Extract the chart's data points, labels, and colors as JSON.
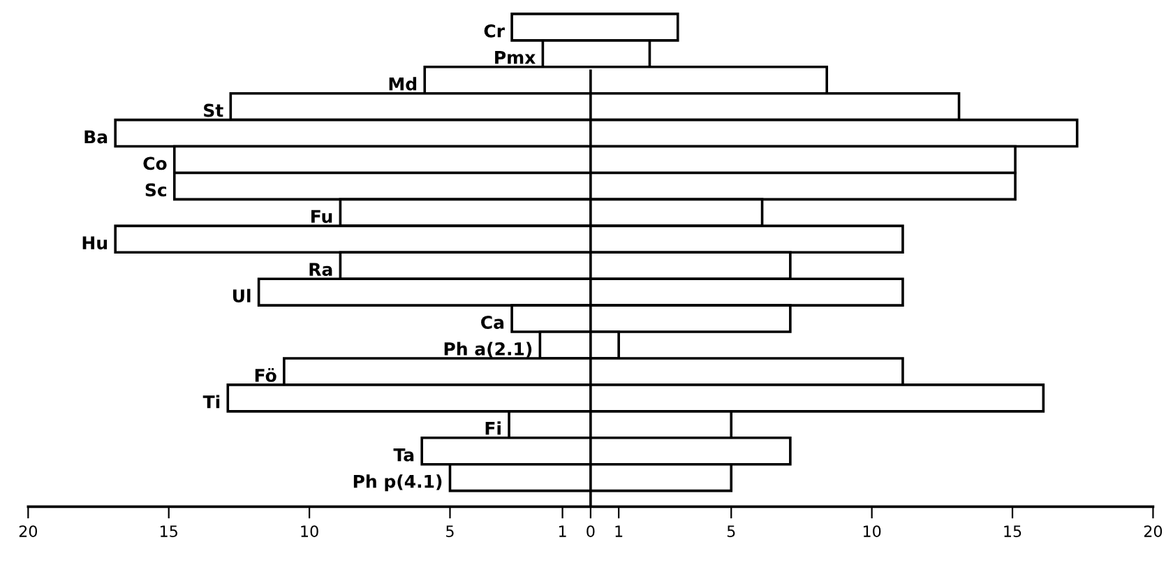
{
  "chart_data": {
    "type": "bar",
    "orientation": "horizontal",
    "categories": [
      "Cr",
      "Pmx",
      "Md",
      "St",
      "Ba",
      "Co",
      "Sc",
      "Fu",
      "Hu",
      "Ra",
      "Ul",
      "Ca",
      "Ph a(2.1)",
      "Fö",
      "Ti",
      "Fi",
      "Ta",
      "Ph p(4.1)"
    ],
    "base": [
      -2.8,
      -1.7,
      -5.9,
      -12.8,
      -16.9,
      -14.8,
      -14.8,
      -8.9,
      -16.9,
      -8.9,
      -11.8,
      -2.8,
      -1.8,
      -10.9,
      -12.9,
      -2.9,
      -6.0,
      -5.0
    ],
    "values": [
      5.9,
      3.8,
      14.3,
      25.9,
      34.2,
      29.9,
      29.9,
      15.0,
      28.0,
      16.0,
      22.9,
      9.9,
      2.8,
      22.0,
      29.0,
      7.9,
      13.1,
      10.0
    ],
    "color": "#ffffff",
    "xlim": [
      -20,
      20
    ],
    "xticks": [
      {
        "value": -20,
        "label": "20"
      },
      {
        "value": -15,
        "label": "15"
      },
      {
        "value": -10,
        "label": "10"
      },
      {
        "value": -5,
        "label": "5"
      },
      {
        "value": -1,
        "label": "1"
      },
      0,
      1,
      5,
      10,
      15,
      20
    ],
    "ref_lines": [
      {
        "axis": "x",
        "value": 0,
        "color": "#000000"
      }
    ],
    "grid": false,
    "legend": false
  }
}
